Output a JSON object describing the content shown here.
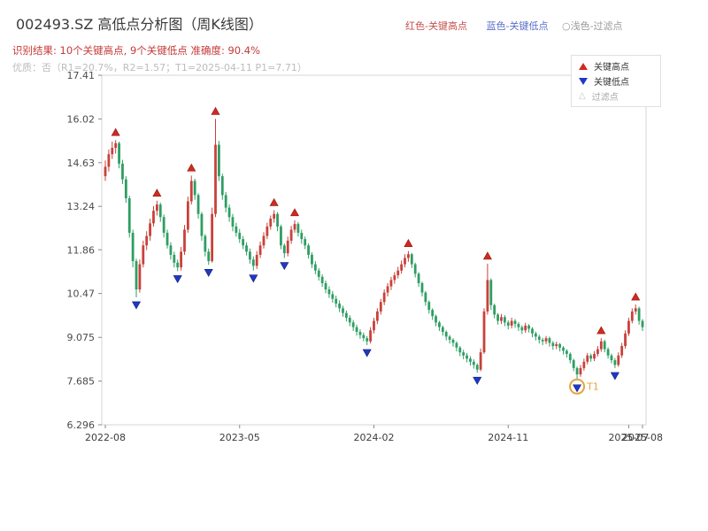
{
  "header": {
    "title": "002493.SZ 高低点分析图（周K线图）",
    "legend_red": "红色-关键高点",
    "legend_blue": "蓝色-关键低点",
    "legend_gray": "○浅色-过滤点",
    "result_line": "识别结果: 10个关键高点, 9个关键低点  准确度: 90.4%",
    "quality_line": "优质：否（R1=20.7%，R2=1.57；T1=2025-04-11 P1=7.71）"
  },
  "legend_box": {
    "high_label": "关键高点",
    "low_label": "关键低点",
    "filter_label": "过滤点"
  },
  "chart_data": {
    "type": "candlestick",
    "title": "002493.SZ 高低点分析图（周K线图）",
    "interval": "weekly",
    "up_color": "#c9413a",
    "down_color": "#2e9e63",
    "high_marker_color": "#d12a1e",
    "low_marker_color": "#2038c8",
    "y_range": [
      6.296,
      17.41
    ],
    "y_ticks": [
      "17.41",
      "16.02",
      "14.63",
      "13.24",
      "11.86",
      "10.47",
      "9.075",
      "7.685",
      "6.296"
    ],
    "x_ticks": [
      {
        "label": "2022-08",
        "week": 0
      },
      {
        "label": "2023-05",
        "week": 39
      },
      {
        "label": "2024-02",
        "week": 78
      },
      {
        "label": "2024-11",
        "week": 117
      },
      {
        "label": "2025-07",
        "week": 152
      },
      {
        "label": "2025-08",
        "week": 156
      }
    ],
    "candles": [
      [
        14.2,
        14.7,
        14.05,
        14.5
      ],
      [
        14.5,
        15.05,
        14.35,
        14.9
      ],
      [
        14.9,
        15.3,
        14.75,
        15.1
      ],
      [
        15.1,
        15.35,
        14.92,
        15.25
      ],
      [
        15.25,
        15.3,
        14.45,
        14.6
      ],
      [
        14.6,
        14.72,
        13.95,
        14.1
      ],
      [
        14.1,
        14.2,
        13.35,
        13.5
      ],
      [
        13.5,
        13.58,
        12.25,
        12.4
      ],
      [
        12.4,
        12.5,
        11.3,
        11.5
      ],
      [
        11.5,
        11.58,
        10.35,
        10.6
      ],
      [
        10.6,
        11.55,
        10.5,
        11.4
      ],
      [
        11.4,
        12.15,
        11.3,
        12.0
      ],
      [
        12.0,
        12.45,
        11.85,
        12.3
      ],
      [
        12.3,
        12.85,
        12.15,
        12.7
      ],
      [
        12.7,
        13.25,
        12.6,
        13.1
      ],
      [
        13.1,
        13.42,
        12.95,
        13.3
      ],
      [
        13.3,
        13.36,
        12.75,
        12.9
      ],
      [
        12.9,
        12.98,
        12.25,
        12.4
      ],
      [
        12.4,
        12.5,
        11.9,
        12.0
      ],
      [
        12.0,
        12.1,
        11.55,
        11.7
      ],
      [
        11.7,
        11.8,
        11.3,
        11.45
      ],
      [
        11.45,
        11.55,
        11.18,
        11.3
      ],
      [
        11.3,
        11.95,
        11.2,
        11.8
      ],
      [
        11.8,
        12.65,
        11.7,
        12.5
      ],
      [
        12.5,
        13.55,
        12.4,
        13.4
      ],
      [
        13.4,
        14.22,
        13.3,
        14.05
      ],
      [
        14.05,
        14.12,
        13.45,
        13.6
      ],
      [
        13.6,
        13.66,
        12.85,
        13.0
      ],
      [
        13.0,
        13.06,
        12.15,
        12.3
      ],
      [
        12.3,
        12.36,
        11.65,
        11.8
      ],
      [
        11.8,
        11.9,
        11.38,
        11.5
      ],
      [
        11.5,
        13.2,
        11.45,
        13.0
      ],
      [
        13.0,
        16.02,
        12.9,
        15.2
      ],
      [
        15.2,
        15.32,
        14.05,
        14.2
      ],
      [
        14.2,
        14.28,
        13.45,
        13.6
      ],
      [
        13.6,
        13.7,
        13.05,
        13.2
      ],
      [
        13.2,
        13.3,
        12.75,
        12.9
      ],
      [
        12.9,
        13.0,
        12.45,
        12.6
      ],
      [
        12.6,
        12.72,
        12.28,
        12.4
      ],
      [
        12.4,
        12.52,
        12.08,
        12.2
      ],
      [
        12.2,
        12.3,
        11.88,
        12.0
      ],
      [
        12.0,
        12.1,
        11.68,
        11.8
      ],
      [
        11.8,
        11.9,
        11.42,
        11.55
      ],
      [
        11.55,
        11.65,
        11.2,
        11.35
      ],
      [
        11.35,
        11.82,
        11.25,
        11.7
      ],
      [
        11.7,
        12.12,
        11.6,
        12.0
      ],
      [
        12.0,
        12.42,
        11.9,
        12.3
      ],
      [
        12.3,
        12.72,
        12.2,
        12.6
      ],
      [
        12.6,
        12.95,
        12.5,
        12.85
      ],
      [
        12.85,
        13.12,
        12.72,
        13.0
      ],
      [
        13.0,
        13.06,
        12.45,
        12.6
      ],
      [
        12.6,
        12.66,
        11.88,
        12.0
      ],
      [
        12.0,
        12.06,
        11.6,
        11.75
      ],
      [
        11.75,
        12.28,
        11.65,
        12.15
      ],
      [
        12.15,
        12.62,
        12.05,
        12.5
      ],
      [
        12.5,
        12.8,
        12.4,
        12.68
      ],
      [
        12.68,
        12.74,
        12.28,
        12.4
      ],
      [
        12.4,
        12.5,
        12.05,
        12.2
      ],
      [
        12.2,
        12.28,
        11.88,
        12.0
      ],
      [
        12.0,
        12.06,
        11.58,
        11.7
      ],
      [
        11.7,
        11.78,
        11.28,
        11.4
      ],
      [
        11.4,
        11.5,
        11.08,
        11.2
      ],
      [
        11.2,
        11.28,
        10.88,
        11.0
      ],
      [
        11.0,
        11.08,
        10.68,
        10.8
      ],
      [
        10.8,
        10.88,
        10.48,
        10.6
      ],
      [
        10.6,
        10.7,
        10.33,
        10.45
      ],
      [
        10.45,
        10.55,
        10.18,
        10.3
      ],
      [
        10.3,
        10.4,
        10.03,
        10.15
      ],
      [
        10.15,
        10.25,
        9.88,
        10.0
      ],
      [
        10.0,
        10.08,
        9.73,
        9.85
      ],
      [
        9.85,
        9.93,
        9.58,
        9.7
      ],
      [
        9.7,
        9.78,
        9.43,
        9.55
      ],
      [
        9.55,
        9.63,
        9.28,
        9.4
      ],
      [
        9.4,
        9.48,
        9.13,
        9.25
      ],
      [
        9.25,
        9.33,
        9.03,
        9.15
      ],
      [
        9.15,
        9.23,
        8.95,
        9.05
      ],
      [
        9.05,
        9.12,
        8.83,
        8.95
      ],
      [
        8.95,
        9.4,
        8.88,
        9.3
      ],
      [
        9.3,
        9.7,
        9.2,
        9.6
      ],
      [
        9.6,
        10.0,
        9.5,
        9.9
      ],
      [
        9.9,
        10.3,
        9.8,
        10.2
      ],
      [
        10.2,
        10.6,
        10.1,
        10.5
      ],
      [
        10.5,
        10.8,
        10.38,
        10.7
      ],
      [
        10.7,
        11.0,
        10.58,
        10.9
      ],
      [
        10.9,
        11.15,
        10.78,
        11.05
      ],
      [
        11.05,
        11.32,
        10.95,
        11.2
      ],
      [
        11.2,
        11.52,
        11.1,
        11.4
      ],
      [
        11.4,
        11.72,
        11.3,
        11.6
      ],
      [
        11.6,
        11.82,
        11.48,
        11.72
      ],
      [
        11.72,
        11.76,
        11.28,
        11.4
      ],
      [
        11.4,
        11.45,
        10.98,
        11.1
      ],
      [
        11.1,
        11.15,
        10.68,
        10.8
      ],
      [
        10.8,
        10.85,
        10.38,
        10.5
      ],
      [
        10.5,
        10.55,
        10.08,
        10.2
      ],
      [
        10.2,
        10.25,
        9.83,
        9.95
      ],
      [
        9.95,
        10.0,
        9.63,
        9.75
      ],
      [
        9.75,
        9.8,
        9.43,
        9.55
      ],
      [
        9.55,
        9.6,
        9.28,
        9.4
      ],
      [
        9.4,
        9.45,
        9.13,
        9.25
      ],
      [
        9.25,
        9.3,
        8.98,
        9.1
      ],
      [
        9.1,
        9.15,
        8.88,
        9.0
      ],
      [
        9.0,
        9.05,
        8.78,
        8.9
      ],
      [
        8.9,
        8.95,
        8.63,
        8.75
      ],
      [
        8.75,
        8.8,
        8.48,
        8.6
      ],
      [
        8.6,
        8.68,
        8.38,
        8.5
      ],
      [
        8.5,
        8.58,
        8.28,
        8.4
      ],
      [
        8.4,
        8.48,
        8.18,
        8.3
      ],
      [
        8.3,
        8.38,
        8.08,
        8.2
      ],
      [
        8.2,
        8.25,
        7.95,
        8.05
      ],
      [
        8.05,
        8.72,
        8.0,
        8.6
      ],
      [
        8.6,
        10.0,
        8.55,
        9.9
      ],
      [
        9.9,
        11.42,
        9.8,
        10.9
      ],
      [
        10.9,
        10.95,
        9.95,
        10.1
      ],
      [
        10.1,
        10.15,
        9.68,
        9.8
      ],
      [
        9.8,
        9.85,
        9.48,
        9.6
      ],
      [
        9.6,
        9.82,
        9.5,
        9.72
      ],
      [
        9.72,
        9.78,
        9.43,
        9.55
      ],
      [
        9.55,
        9.62,
        9.33,
        9.45
      ],
      [
        9.45,
        9.7,
        9.36,
        9.6
      ],
      [
        9.6,
        9.66,
        9.38,
        9.5
      ],
      [
        9.5,
        9.56,
        9.28,
        9.4
      ],
      [
        9.4,
        9.46,
        9.18,
        9.3
      ],
      [
        9.3,
        9.54,
        9.22,
        9.45
      ],
      [
        9.45,
        9.5,
        9.23,
        9.35
      ],
      [
        9.35,
        9.4,
        9.08,
        9.2
      ],
      [
        9.2,
        9.26,
        8.98,
        9.1
      ],
      [
        9.1,
        9.16,
        8.88,
        9.0
      ],
      [
        9.0,
        9.06,
        8.83,
        8.95
      ],
      [
        8.95,
        9.12,
        8.86,
        9.05
      ],
      [
        9.05,
        9.1,
        8.78,
        8.9
      ],
      [
        8.9,
        8.96,
        8.68,
        8.8
      ],
      [
        8.8,
        8.94,
        8.7,
        8.86
      ],
      [
        8.86,
        8.9,
        8.63,
        8.75
      ],
      [
        8.75,
        8.8,
        8.53,
        8.65
      ],
      [
        8.65,
        8.7,
        8.43,
        8.55
      ],
      [
        8.55,
        8.6,
        8.25,
        8.35
      ],
      [
        8.35,
        8.4,
        8.0,
        8.1
      ],
      [
        8.1,
        8.15,
        7.71,
        7.9
      ],
      [
        7.9,
        8.2,
        7.82,
        8.1
      ],
      [
        8.1,
        8.4,
        8.02,
        8.3
      ],
      [
        8.3,
        8.58,
        8.22,
        8.5
      ],
      [
        8.5,
        8.56,
        8.3,
        8.4
      ],
      [
        8.4,
        8.64,
        8.32,
        8.55
      ],
      [
        8.55,
        8.8,
        8.47,
        8.7
      ],
      [
        8.7,
        9.05,
        8.62,
        8.95
      ],
      [
        8.95,
        9.0,
        8.6,
        8.7
      ],
      [
        8.7,
        8.76,
        8.4,
        8.5
      ],
      [
        8.5,
        8.56,
        8.25,
        8.35
      ],
      [
        8.35,
        8.42,
        8.1,
        8.2
      ],
      [
        8.2,
        8.6,
        8.14,
        8.5
      ],
      [
        8.5,
        8.9,
        8.42,
        8.8
      ],
      [
        8.8,
        9.3,
        8.72,
        9.2
      ],
      [
        9.2,
        9.7,
        9.12,
        9.6
      ],
      [
        9.6,
        10.0,
        9.52,
        9.9
      ],
      [
        9.9,
        10.12,
        9.8,
        10.0
      ],
      [
        10.0,
        10.05,
        9.48,
        9.6
      ],
      [
        9.6,
        9.66,
        9.28,
        9.4
      ]
    ],
    "key_highs": [
      {
        "week": 3,
        "price": 15.35
      },
      {
        "week": 15,
        "price": 13.42
      },
      {
        "week": 25,
        "price": 14.22
      },
      {
        "week": 32,
        "price": 16.02
      },
      {
        "week": 49,
        "price": 13.12
      },
      {
        "week": 55,
        "price": 12.8
      },
      {
        "week": 88,
        "price": 11.82
      },
      {
        "week": 111,
        "price": 11.42
      },
      {
        "week": 144,
        "price": 9.05
      },
      {
        "week": 154,
        "price": 10.12
      }
    ],
    "key_lows": [
      {
        "week": 9,
        "price": 10.35
      },
      {
        "week": 21,
        "price": 11.18
      },
      {
        "week": 30,
        "price": 11.38
      },
      {
        "week": 43,
        "price": 11.2
      },
      {
        "week": 52,
        "price": 11.6
      },
      {
        "week": 76,
        "price": 8.83
      },
      {
        "week": 108,
        "price": 7.95
      },
      {
        "week": 137,
        "price": 7.71
      },
      {
        "week": 148,
        "price": 8.1
      }
    ],
    "t1_marker": {
      "week": 137,
      "price": 7.71,
      "label": "T1",
      "color": "#e5a33c"
    }
  }
}
